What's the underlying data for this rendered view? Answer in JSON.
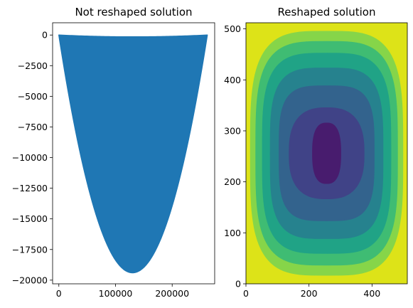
{
  "chart_data": [
    {
      "type": "area",
      "title": "Not reshaped solution",
      "xlabel": "",
      "ylabel": "",
      "xlim": [
        -11000,
        275000
      ],
      "ylim": [
        -20300,
        1000
      ],
      "x_ticks": [
        0,
        100000,
        200000
      ],
      "x_tick_labels": [
        "0",
        "100000",
        "200000"
      ],
      "y_ticks": [
        0,
        -2500,
        -5000,
        -7500,
        -10000,
        -12500,
        -15000,
        -17500,
        -20000
      ],
      "y_tick_labels": [
        "0",
        "−2500",
        "−5000",
        "−7500",
        "−10000",
        "−12500",
        "−15000",
        "−17500",
        "−20000"
      ],
      "grid": false,
      "color": "#1f77b4",
      "envelope": {
        "x": [
          0,
          130000,
          262000
        ],
        "y_top": [
          0,
          -150,
          0
        ],
        "y_bottom": [
          0,
          -19400,
          0
        ]
      }
    },
    {
      "type": "heatmap",
      "title": "Reshaped solution",
      "xlabel": "",
      "ylabel": "",
      "xlim": [
        0,
        512
      ],
      "ylim": [
        0,
        512
      ],
      "x_ticks": [
        0,
        200,
        400
      ],
      "x_tick_labels": [
        "0",
        "200",
        "400"
      ],
      "y_ticks": [
        0,
        100,
        200,
        300,
        400,
        500
      ],
      "y_tick_labels": [
        "0",
        "100",
        "200",
        "300",
        "400",
        "500"
      ],
      "grid": false,
      "colormap": "viridis",
      "levels": [
        {
          "color": "#dde318",
          "half_width": 256,
          "half_height": 256
        },
        {
          "color": "#86d549",
          "half_width": 243,
          "half_height": 240
        },
        {
          "color": "#3fbc73",
          "half_width": 226,
          "half_height": 220
        },
        {
          "color": "#20a386",
          "half_width": 205,
          "half_height": 197
        },
        {
          "color": "#26828e",
          "half_width": 180,
          "half_height": 168
        },
        {
          "color": "#33638d",
          "half_width": 152,
          "half_height": 133
        },
        {
          "color": "#404387",
          "half_width": 120,
          "half_height": 90
        },
        {
          "color": "#481c6e",
          "half_width": 46,
          "half_height": 60
        }
      ]
    }
  ]
}
